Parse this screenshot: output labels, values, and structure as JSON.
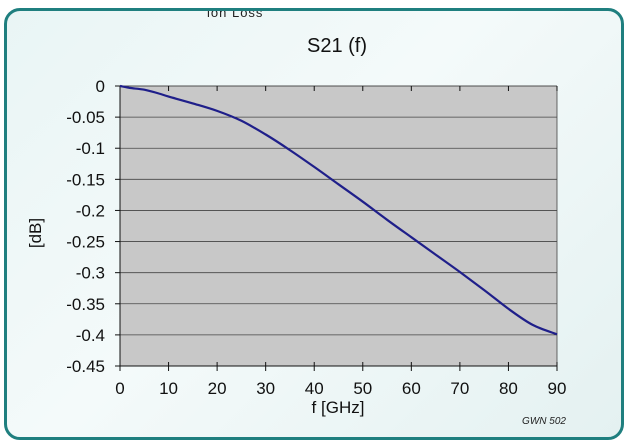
{
  "header_fragment": "ion Loss",
  "chart_data": {
    "type": "line",
    "title": "S21 (f)",
    "xlabel": "f [GHz]",
    "ylabel": "[dB]",
    "xlim": [
      0,
      90
    ],
    "ylim": [
      -0.45,
      0
    ],
    "xticks": [
      0,
      10,
      20,
      30,
      40,
      50,
      60,
      70,
      80,
      90
    ],
    "yticks": [
      0,
      -0.05,
      -0.1,
      -0.15,
      -0.2,
      -0.25,
      -0.3,
      -0.35,
      -0.4,
      -0.45
    ],
    "xtick_labels": [
      "0",
      "10",
      "20",
      "30",
      "40",
      "50",
      "60",
      "70",
      "80",
      "90"
    ],
    "ytick_labels": [
      "0",
      "-0.05",
      "-0.1",
      "-0.15",
      "-0.2",
      "-0.25",
      "-0.3",
      "-0.35",
      "-0.4",
      "-0.45"
    ],
    "grid": true,
    "plot_background": "#c8c8c8",
    "line_color": "#1f1f8a",
    "series": [
      {
        "x": [
          0,
          2,
          5,
          8,
          10,
          15,
          20,
          25,
          30,
          35,
          40,
          45,
          50,
          55,
          60,
          65,
          70,
          75,
          80,
          85,
          90
        ],
        "y": [
          0,
          -0.003,
          -0.006,
          -0.012,
          -0.017,
          -0.028,
          -0.04,
          -0.056,
          -0.078,
          -0.103,
          -0.13,
          -0.158,
          -0.186,
          -0.215,
          -0.243,
          -0.271,
          -0.299,
          -0.328,
          -0.358,
          -0.384,
          -0.399
        ]
      }
    ]
  },
  "watermark": "GWN 502"
}
